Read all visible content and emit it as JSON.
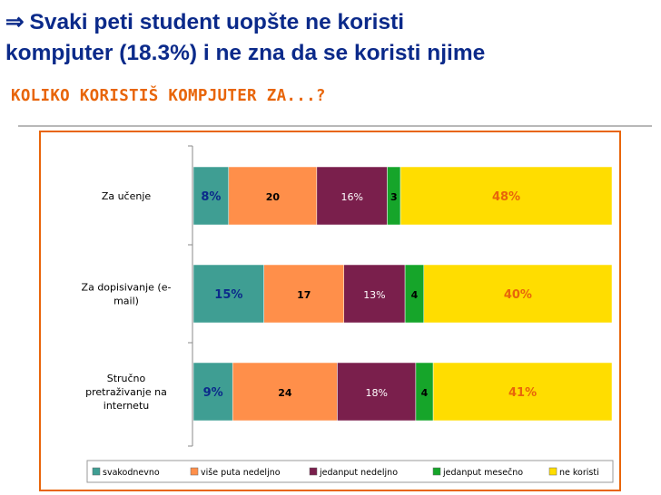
{
  "slide": {
    "arrow": "⇒",
    "title": "Svaki peti student uopšte ne koristi kompjuter (18.3%) i ne zna da se koristi njime",
    "title_line1": "Svaki peti student uopšte ne koristi",
    "title_line2": "kompjuter (18.3%) i ne zna da se koristi njime",
    "subtitle": "KOLIKO KORISTIŠ KOMPJUTER ZA...?"
  },
  "colors": {
    "title": "#0b2a8a",
    "subtitle": "#e8650a",
    "frame": "#e8650a"
  },
  "chart_data": {
    "type": "bar",
    "orientation": "horizontal",
    "stacked": true,
    "stacking": "100%",
    "categories": [
      [
        "Za učenje"
      ],
      [
        "Za dopisivanje (e-",
        "mail)"
      ],
      [
        "Stručno",
        "pretraživanje na",
        "internetu"
      ]
    ],
    "series": [
      {
        "name": "svakodnevno",
        "color": "#3f9e93",
        "values": [
          8,
          15,
          9
        ],
        "labels": [
          "8%",
          "15%",
          "9%"
        ]
      },
      {
        "name": "više puta nedeljno",
        "color": "#ff8f4a",
        "values": [
          20,
          17,
          24
        ],
        "labels": [
          "20",
          "17",
          "24"
        ]
      },
      {
        "name": "jedanput nedeljno",
        "color": "#7a1f4c",
        "values": [
          16,
          13,
          18
        ],
        "labels": [
          "16%",
          "13%",
          "18%"
        ]
      },
      {
        "name": "jedanput mesečno",
        "color": "#16a52a",
        "values": [
          3,
          4,
          4
        ],
        "labels": [
          "3",
          "4",
          "4"
        ]
      },
      {
        "name": "ne koristi",
        "color": "#ffdd00",
        "values": [
          48,
          40,
          41
        ],
        "labels": [
          "48%",
          "40%",
          "41%"
        ]
      }
    ],
    "legend_position": "bottom",
    "grid": false
  }
}
